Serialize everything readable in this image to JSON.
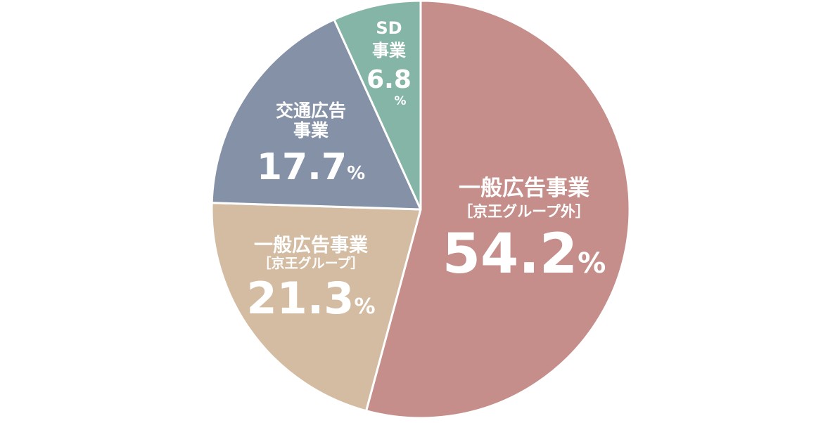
{
  "chart_data": {
    "type": "pie",
    "title": "",
    "slices": [
      {
        "label_lines": [
          "一般広告事業",
          "［京王グループ外］"
        ],
        "value": 54.2,
        "value_text": "54.2",
        "unit": "%",
        "color": "#c68e8a"
      },
      {
        "label_lines": [
          "一般広告事業",
          "［京王グループ］"
        ],
        "value": 21.3,
        "value_text": "21.3",
        "unit": "%",
        "color": "#d4bca2"
      },
      {
        "label_lines": [
          "交通広告",
          "事業"
        ],
        "value": 17.7,
        "value_text": "17.7",
        "unit": "%",
        "color": "#8491a6"
      },
      {
        "label_lines": [
          "SD",
          "事業"
        ],
        "value": 6.8,
        "value_text": "6.8",
        "unit": "%",
        "color": "#85b5a6"
      }
    ]
  }
}
